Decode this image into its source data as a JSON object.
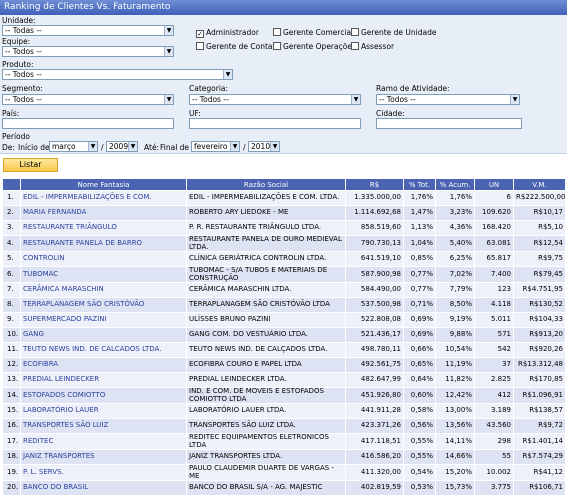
{
  "title": "Ranking de Clientes Vs. Faturamento",
  "filters": {
    "unidade_label": "Unidade:",
    "unidade_value": "-- Todas --",
    "equipe_label": "Equipe:",
    "equipe_value": "-- Todos --",
    "produto_label": "Produto:",
    "produto_value": "-- Todos --",
    "segmento_label": "Segmento:",
    "segmento_value": "-- Todos --",
    "categoria_label": "Categoria:",
    "categoria_value": "-- Todos --",
    "ramo_label": "Ramo de Atividade:",
    "ramo_value": "-- Todos --",
    "pais_label": "País:",
    "uf_label": "UF:",
    "cidade_label": "Cidade:",
    "periodo_label": "Período",
    "de_label": "De:",
    "inicio_label": "Início de",
    "inicio_mes": "março",
    "slash1": "/",
    "inicio_ano": "2009",
    "ate_label": "Até:",
    "final_label": "Final de",
    "final_mes": "fevereiro",
    "slash2": "/",
    "final_ano": "2010",
    "checkboxes": [
      {
        "label": "Administrador",
        "checked": true
      },
      {
        "label": "Gerente Comercial",
        "checked": false
      },
      {
        "label": "Gerente de Unidade",
        "checked": false
      },
      {
        "label": "Gerente de Contas",
        "checked": false
      },
      {
        "label": "Gerente Operações",
        "checked": false
      },
      {
        "label": "Assessor",
        "checked": false
      }
    ],
    "listar_label": "Listar"
  },
  "table": {
    "headers": [
      "",
      "Nome Fantasia",
      "Razão Social",
      "R$",
      "% Tot.",
      "% Acum.",
      "UN",
      "V.M."
    ],
    "rows": [
      [
        "1.",
        "EDIL - IMPERMEABILIZAÇÕES E COM.",
        "EDIL - IMPERMEABILIZAÇÕES E COM. LTDA.",
        "1.335.000,00",
        "1,76%",
        "1,76%",
        "6",
        "R$222.500,00"
      ],
      [
        "2.",
        "MARIA FERNANDA",
        "ROBERTO ARY LIEDOKE - ME",
        "1.114.692,68",
        "1,47%",
        "3,23%",
        "109.620",
        "R$10,17"
      ],
      [
        "3.",
        "RESTAURANTE TRIÂNGULO",
        "P. R. RESTAURANTE TRIÂNGULO LTDA.",
        "858.519,60",
        "1,13%",
        "4,36%",
        "168.420",
        "R$5,10"
      ],
      [
        "4.",
        "RESTAURANTE PANELA DE BARRO",
        "RESTAURANTE PANELA DE OURO MEDIEVAL LTDA.",
        "790.730,13",
        "1,04%",
        "5,40%",
        "63.081",
        "R$12,54"
      ],
      [
        "5.",
        "CONTROLIN",
        "CLÍNICA GERIÁTRICA CONTROLIN LTDA.",
        "641.519,10",
        "0,85%",
        "6,25%",
        "65.817",
        "R$9,75"
      ],
      [
        "6.",
        "TUBOMAC",
        "TUBOMAC - S/A TUBOS E MATERIAIS DE CONSTRUÇÃO",
        "587.900,98",
        "0,77%",
        "7,02%",
        "7.400",
        "R$79,45"
      ],
      [
        "7.",
        "CERÂMICA MARASCHIN",
        "CERÂMICA MARASCHIN LTDA.",
        "584.490,00",
        "0,77%",
        "7,79%",
        "123",
        "R$4.751,95"
      ],
      [
        "8.",
        "TERRAPLANAGEM SÃO CRISTÓVÃO",
        "TERRAPLANAGEM SÃO CRISTÓVÃO LTDA",
        "537.500,98",
        "0,71%",
        "8,50%",
        "4.118",
        "R$130,52"
      ],
      [
        "9.",
        "SUPERMERCADO PAZINI",
        "ULÍSSES BRUNO PAZINI",
        "522.808,08",
        "0,69%",
        "9,19%",
        "5.011",
        "R$104,33"
      ],
      [
        "10.",
        "GANG",
        "GANG COM. DO VESTUÁRIO LTDA.",
        "521.436,17",
        "0,69%",
        "9,88%",
        "571",
        "R$913,20"
      ],
      [
        "11.",
        "TEUTO NEWS IND. DE CALCADOS LTDA.",
        "TEUTO NEWS IND. DE CALÇADOS LTDA.",
        "498.780,11",
        "0,66%",
        "10,54%",
        "542",
        "R$920,26"
      ],
      [
        "12.",
        "ECOFIBRA",
        "ECOFIBRA COURO E PAPEL LTDA",
        "492.561,75",
        "0,65%",
        "11,19%",
        "37",
        "R$13.312,48"
      ],
      [
        "13.",
        "PREDIAL LEINDECKER",
        "PREDIAL LEINDECKER LTDA.",
        "482.647,99",
        "0,64%",
        "11,82%",
        "2.825",
        "R$170,85"
      ],
      [
        "14.",
        "ESTOFADOS COMIOTTO",
        "IND. E COM. DE MÓVEIS E ESTOFADOS COMIOTTO LTDA",
        "451.926,80",
        "0,60%",
        "12,42%",
        "412",
        "R$1.096,91"
      ],
      [
        "15.",
        "LABORATÓRIO LAUER",
        "LABORATÓRIO LAUER LTDA.",
        "441.911,28",
        "0,58%",
        "13,00%",
        "3.189",
        "R$138,57"
      ],
      [
        "16.",
        "TRANSPORTES SÃO LUIZ",
        "TRANSPORTES SÃO LUIZ LTDA.",
        "423.371,26",
        "0,56%",
        "13,56%",
        "43.560",
        "R$9,72"
      ],
      [
        "17.",
        "REDITEC",
        "REDITEC EQUIPAMENTOS ELETRÔNICOS LTDA",
        "417.118,51",
        "0,55%",
        "14,11%",
        "298",
        "R$1.401,14"
      ],
      [
        "18.",
        "JANIZ TRANSPORTES",
        "JANIZ TRANSPORTES LTDA.",
        "416.586,20",
        "0,55%",
        "14,66%",
        "55",
        "R$7.574,29"
      ],
      [
        "19.",
        "P. L. SERVS.",
        "PAULO CLAUDEMIR DUARTE DE VARGAS - ME",
        "411.320,00",
        "0,54%",
        "15,20%",
        "10.002",
        "R$41,12"
      ],
      [
        "20.",
        "BANCO DO BRASIL",
        "BANCO DO BRASIL S/A - AG. MAJESTIC",
        "402.819,59",
        "0,53%",
        "15,73%",
        "3.775",
        "R$106,71"
      ]
    ]
  }
}
